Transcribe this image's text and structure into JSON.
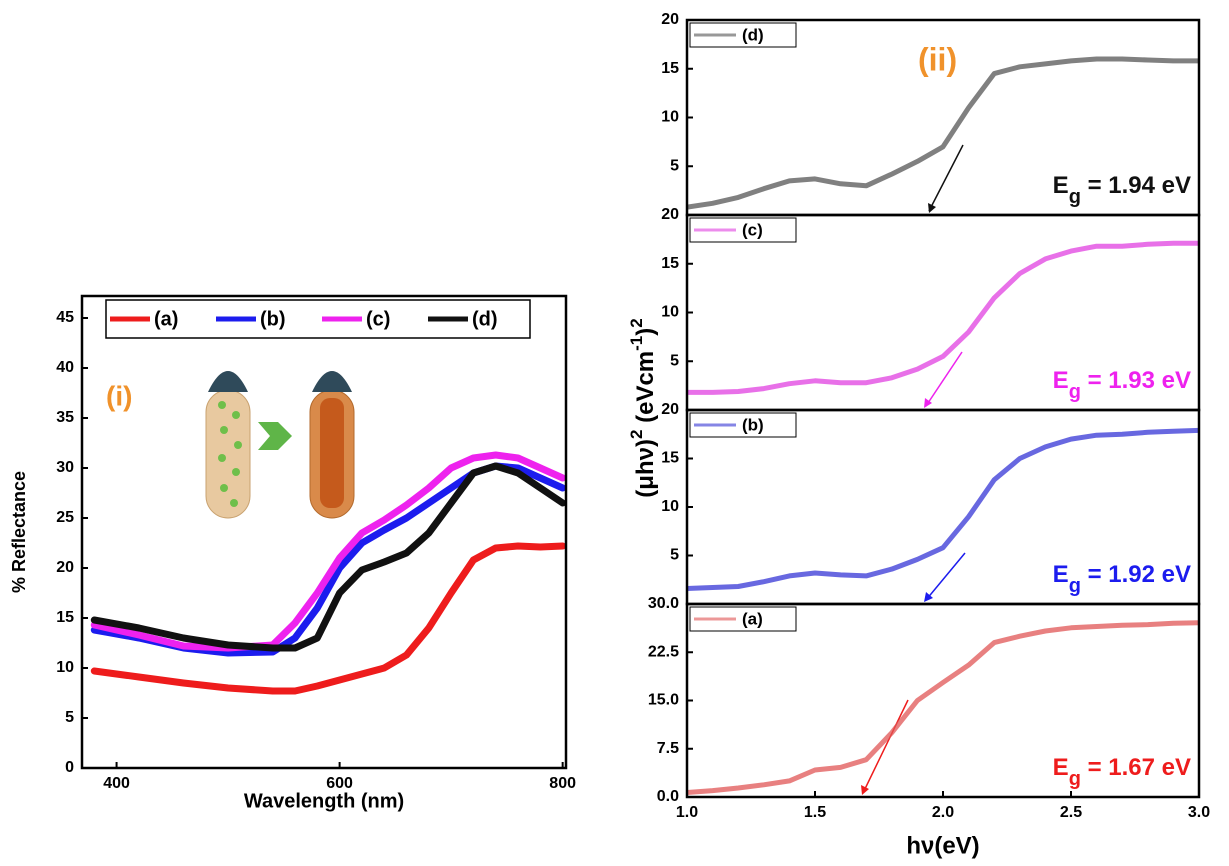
{
  "chart_data": [
    {
      "type": "line",
      "xlabel": "Wavelength (nm)",
      "ylabel": "% Reflectance",
      "xlim": [
        369,
        803
      ],
      "ylim": [
        0,
        47.2
      ],
      "xticks": [
        400,
        600,
        800
      ],
      "yticks": [
        0,
        5,
        10,
        15,
        20,
        25,
        30,
        35,
        40,
        45
      ],
      "legend": "top",
      "annotations": [
        {
          "text": "(i)",
          "color": "#f0922b"
        }
      ],
      "x": [
        380,
        420,
        460,
        500,
        540,
        560,
        580,
        600,
        620,
        640,
        660,
        680,
        700,
        720,
        740,
        760,
        780,
        800
      ],
      "series": [
        {
          "name": "(a)",
          "color": "#ee1c1c",
          "values": [
            9.7,
            9.1,
            8.5,
            8.0,
            7.7,
            7.7,
            8.2,
            8.8,
            9.4,
            10.0,
            11.3,
            14.0,
            17.5,
            20.8,
            22.0,
            22.2,
            22.1,
            22.2
          ]
        },
        {
          "name": "(b)",
          "color": "#1c1cee",
          "values": [
            13.8,
            13.0,
            12.0,
            11.5,
            11.6,
            13.0,
            16.0,
            20.0,
            22.5,
            23.8,
            25.0,
            26.5,
            28.0,
            29.5,
            30.2,
            30.0,
            29.0,
            28.0
          ]
        },
        {
          "name": "(c)",
          "color": "#ee22ee",
          "values": [
            14.3,
            13.3,
            12.2,
            12.0,
            12.3,
            14.5,
            17.5,
            21.0,
            23.5,
            24.8,
            26.3,
            28.0,
            30.0,
            31.0,
            31.3,
            31.0,
            30.0,
            29.0
          ]
        },
        {
          "name": "(d)",
          "color": "#111111",
          "values": [
            14.8,
            14.0,
            13.0,
            12.3,
            12.0,
            12.0,
            13.0,
            17.5,
            19.8,
            20.6,
            21.5,
            23.5,
            26.5,
            29.5,
            30.2,
            29.5,
            28.0,
            26.5
          ]
        }
      ]
    },
    {
      "type": "line",
      "ylabel": [
        "(μhν)",
        "2",
        " (eVcm",
        "-1",
        ")",
        "2"
      ],
      "xlim": [
        1.0,
        3.0
      ],
      "ylim": [
        0,
        20
      ],
      "yticks": [
        5,
        10,
        15,
        20
      ],
      "legend": "top-left",
      "annotations": [
        {
          "text": "(ii)",
          "color": "#f0922b"
        },
        {
          "parts": [
            "E",
            "g",
            " = 1.94 eV"
          ],
          "color": "#111111"
        }
      ],
      "x": [
        1.0,
        1.1,
        1.2,
        1.3,
        1.4,
        1.5,
        1.6,
        1.7,
        1.8,
        1.9,
        2.0,
        2.1,
        2.2,
        2.3,
        2.4,
        2.5,
        2.6,
        2.7,
        2.8,
        2.9,
        3.0
      ],
      "series": [
        {
          "name": "(d)",
          "color": "#555555",
          "values": [
            0.8,
            1.2,
            1.8,
            2.7,
            3.5,
            3.7,
            3.2,
            3.0,
            4.2,
            5.5,
            7.0,
            11.0,
            14.5,
            15.2,
            15.5,
            15.8,
            16.0,
            16.0,
            15.9,
            15.8,
            15.8
          ]
        }
      ]
    },
    {
      "type": "line",
      "xlim": [
        1.0,
        3.0
      ],
      "ylim": [
        0,
        20
      ],
      "yticks": [
        5,
        10,
        15,
        20
      ],
      "legend": "top-left",
      "annotations": [
        {
          "parts": [
            "E",
            "g",
            " = 1.93 eV"
          ],
          "color": "#ee22ee"
        }
      ],
      "x": [
        1.0,
        1.1,
        1.2,
        1.3,
        1.4,
        1.5,
        1.6,
        1.7,
        1.8,
        1.9,
        2.0,
        2.1,
        2.2,
        2.3,
        2.4,
        2.5,
        2.6,
        2.7,
        2.8,
        2.9,
        3.0
      ],
      "series": [
        {
          "name": "(c)",
          "color": "#e040e0",
          "values": [
            1.8,
            1.8,
            1.9,
            2.2,
            2.7,
            3.0,
            2.8,
            2.8,
            3.3,
            4.2,
            5.5,
            8.0,
            11.5,
            14.0,
            15.5,
            16.3,
            16.8,
            16.8,
            17.0,
            17.1,
            17.1
          ]
        }
      ]
    },
    {
      "type": "line",
      "xlim": [
        1.0,
        3.0
      ],
      "ylim": [
        0,
        20
      ],
      "yticks": [
        5,
        10,
        15,
        20
      ],
      "legend": "top-left",
      "annotations": [
        {
          "parts": [
            "E",
            "g",
            " = 1.92 eV"
          ],
          "color": "#1c1cee"
        }
      ],
      "x": [
        1.0,
        1.1,
        1.2,
        1.3,
        1.4,
        1.5,
        1.6,
        1.7,
        1.8,
        1.9,
        2.0,
        2.1,
        2.2,
        2.3,
        2.4,
        2.5,
        2.6,
        2.7,
        2.8,
        2.9,
        3.0
      ],
      "series": [
        {
          "name": "(b)",
          "color": "#3535d5",
          "values": [
            1.6,
            1.7,
            1.8,
            2.3,
            2.9,
            3.2,
            3.0,
            2.9,
            3.6,
            4.6,
            5.8,
            9.0,
            12.8,
            15.0,
            16.2,
            17.0,
            17.4,
            17.5,
            17.7,
            17.8,
            17.9
          ]
        }
      ]
    },
    {
      "type": "line",
      "xlabel": "hν(eV)",
      "xlim": [
        1.0,
        3.0
      ],
      "ylim": [
        0,
        30
      ],
      "xticks": [
        {
          "value": 1.0,
          "label": "1.0"
        },
        {
          "value": 1.5,
          "label": "1.5"
        },
        {
          "value": 2.0,
          "label": "2.0"
        },
        {
          "value": 2.5,
          "label": "2.5"
        },
        {
          "value": 3.0,
          "label": "3.0"
        }
      ],
      "yticks": [
        {
          "value": 0,
          "label": "0.0"
        },
        7.5,
        {
          "value": 15,
          "label": "15.0"
        },
        22.5,
        {
          "value": 30,
          "label": "30.0"
        }
      ],
      "legend": "top-left",
      "annotations": [
        {
          "parts": [
            "E",
            "g",
            " = 1.67 eV"
          ],
          "color": "#ee1c1c"
        }
      ],
      "x": [
        1.0,
        1.1,
        1.2,
        1.3,
        1.4,
        1.5,
        1.6,
        1.7,
        1.8,
        1.9,
        2.0,
        2.1,
        2.2,
        2.3,
        2.4,
        2.5,
        2.6,
        2.7,
        2.8,
        2.9,
        3.0
      ],
      "series": [
        {
          "name": "(a)",
          "color": "#e05555",
          "values": [
            0.7,
            1.0,
            1.4,
            1.9,
            2.5,
            4.2,
            4.6,
            5.8,
            10.0,
            15.0,
            17.8,
            20.5,
            24.0,
            25.0,
            25.8,
            26.3,
            26.5,
            26.7,
            26.8,
            27.0,
            27.1
          ]
        }
      ]
    }
  ]
}
